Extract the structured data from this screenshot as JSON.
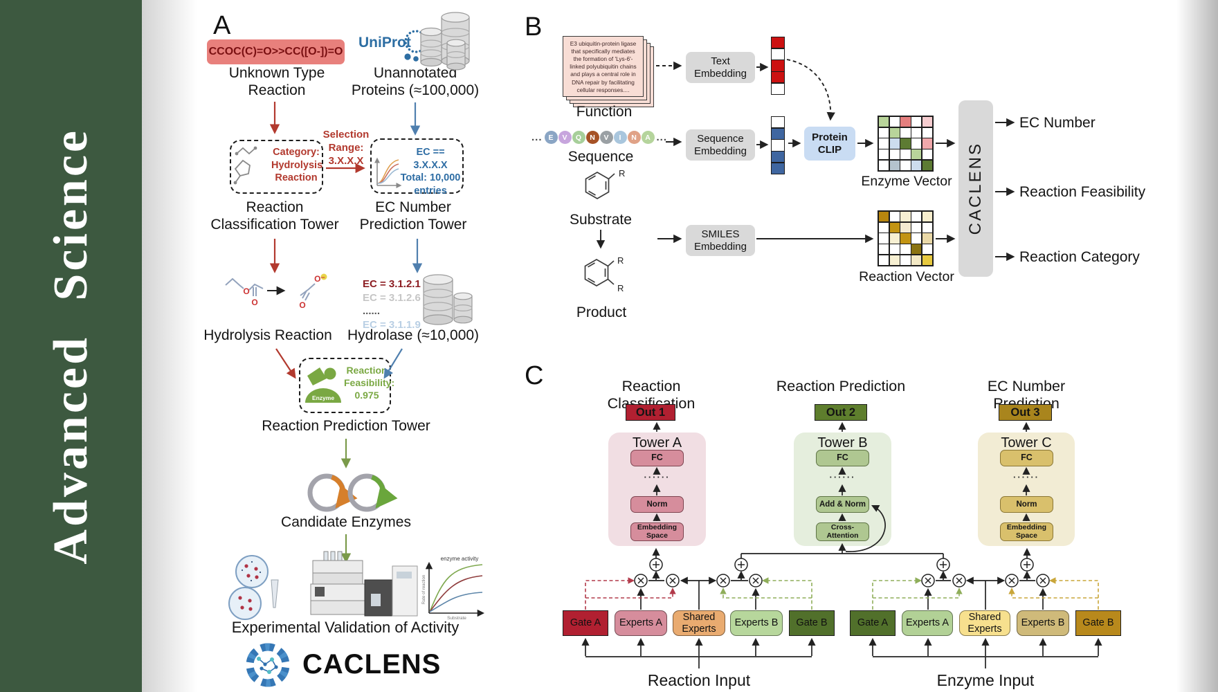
{
  "band": {
    "title": "Advanced Science",
    "bg": "#3d5940"
  },
  "panel_a": {
    "label": "A",
    "smiles": "CCOC(C)=O>>CC([O-])=O",
    "smiles_bg": "#e8807c",
    "smiles_color": "#7a1012",
    "uniprot": "UniProt",
    "unknown_type": "Unknown Type\nReaction",
    "unannotated": "Unannotated\nProteins (≈100,000)",
    "selection_range": "Selection\nRange:\n3.X.X.X",
    "category": "Category:\nHydrolysis\nReaction",
    "ec_filter": "EC == 3.X.X.X\nTotal: 10,000\nentries",
    "ec_filter_color": "#2e6da4",
    "tower1": "Reaction\nClassification Tower",
    "tower2": "EC Number\nPrediction Tower",
    "mol": {
      "o": "O",
      "ominus": "O⁻"
    },
    "ec_list": [
      {
        "text": "EC = 3.1.2.1",
        "color": "#8c1d22"
      },
      {
        "text": "EC = 3.1.2.6",
        "color": "#c6c6c6"
      },
      {
        "text": "......",
        "color": "#555555"
      },
      {
        "text": "EC = 3.1.1.9",
        "color": "#b9cfe4"
      }
    ],
    "hydrolysis": "Hydrolysis Reaction",
    "hydrolase": "Hydrolase (≈10,000)",
    "enzyme_badge": "Enzyme",
    "feasibility": "Reaction\nFeasibility:\n0.975",
    "enzyme_green": "#7aa843",
    "tower3": "Reaction Prediction Tower",
    "candidates": "Candidate Enzymes",
    "graph": {
      "curve_label": "enzyme activity",
      "ylabel": "Rate of reaction",
      "xlabel": "Substrate"
    },
    "validation": "Experimental Validation of Activity",
    "wordmark": "CACLENS",
    "accent_red": "#b2392e",
    "accent_blue": "#4f7fae",
    "accent_green": "#7a9a4a"
  },
  "panel_b": {
    "label": "B",
    "function_text": "E3 ubiquitin-protein ligase that specifically mediates the formation of 'Lys-6'-linked polyubiquitin chains and plays a central role in DNA repair by facilitating cellular responses....",
    "function_label": "Function",
    "ellipsis": "...",
    "residues": [
      {
        "letter": "E",
        "color": "#8aa5c4"
      },
      {
        "letter": "V",
        "color": "#c7a5dd"
      },
      {
        "letter": "Q",
        "color": "#a7cf9a"
      },
      {
        "letter": "N",
        "color": "#a65226"
      },
      {
        "letter": "V",
        "color": "#9aa0a4"
      },
      {
        "letter": "I",
        "color": "#a9c6dd"
      },
      {
        "letter": "N",
        "color": "#e0a287"
      },
      {
        "letter": "A",
        "color": "#b5d49c"
      }
    ],
    "sequence_label": "Sequence",
    "text_embedding": "Text\nEmbedding",
    "sequence_embedding": "Sequence\nEmbedding",
    "smiles_embedding": "SMILES\nEmbedding",
    "protein_clip": "Protein\nCLIP",
    "protein_clip_bg": "#c9dcf3",
    "box_bg": "#d9d9d9",
    "r_label": "R",
    "substrate_label": "Substrate",
    "product_label": "Product",
    "text_vector_cells": [
      "#cc1111",
      "#ffffff",
      "#cc1111",
      "#cc1111",
      "#ffffff"
    ],
    "sequence_vector_cells": [
      "#ffffff",
      "#3f66a0",
      "#ffffff",
      "#3f66a0",
      "#3f66a0"
    ],
    "enzyme_vector": {
      "label": "Enzyme Vector",
      "cells": [
        "#b8d49a",
        "#ffffff",
        "#e57f7f",
        "#ffffff",
        "#f6cdd0",
        "#ffffff",
        "#b8d49a",
        "#ffffff",
        "#ffffff",
        "#ffffff",
        "#ffffff",
        "#ccdcee",
        "#5d7b33",
        "#ffffff",
        "#f0a8ab",
        "#ffffff",
        "#ffffff",
        "#ffffff",
        "#b8d49a",
        "#ffffff",
        "#ffffff",
        "#b4c3cd",
        "#ffffff",
        "#ccdcee",
        "#5d7b33"
      ]
    },
    "reaction_vector": {
      "label": "Reaction Vector",
      "cells": [
        "#b8860f",
        "#ffffff",
        "#f7f0d2",
        "#ffffff",
        "#f7eecd",
        "#ffffff",
        "#c29413",
        "#f3ead0",
        "#ffffff",
        "#ffffff",
        "#ffffff",
        "#f7f0d2",
        "#c29413",
        "#ffffff",
        "#ead9a8",
        "#ffffff",
        "#ffffff",
        "#ffffff",
        "#8a7311",
        "#ffffff",
        "#ffffff",
        "#f7f0d2",
        "#ffffff",
        "#f3e9c5",
        "#e7c93f"
      ]
    },
    "caclens_bar": "CACLENS",
    "caclens_bar_bg": "#d9d9d9",
    "outputs": [
      "EC Number",
      "Reaction Feasibility",
      "Reaction Category"
    ]
  },
  "panel_c": {
    "label": "C",
    "headers": [
      "Reaction Classification",
      "Reaction Prediction",
      "EC Number Prediction"
    ],
    "outs": [
      {
        "label": "Out 1",
        "color": "#b12031"
      },
      {
        "label": "Out 2",
        "color": "#5e7e2d"
      },
      {
        "label": "Out 3",
        "color": "#a9851d"
      }
    ],
    "towers": [
      {
        "name": "Tower A",
        "bg": "#f1dee3",
        "block_bg": "#d68d9c",
        "block_border": "#7d4450",
        "top": "FC",
        "dots": "······",
        "mid": "Norm",
        "bottom": "Embedding\nSpace"
      },
      {
        "name": "Tower B",
        "bg": "#e5eedd",
        "block_bg": "#afc791",
        "block_border": "#5e7345",
        "top": "FC",
        "dots": "······",
        "mid": "Add & Norm",
        "bottom": "Cross-\nAttention"
      },
      {
        "name": "Tower C",
        "bg": "#f2ecd4",
        "block_bg": "#d9c06c",
        "block_border": "#8a7634",
        "top": "FC",
        "dots": "······",
        "mid": "Norm",
        "bottom": "Embedding\nSpace"
      }
    ],
    "moe_left": {
      "gate_a": {
        "label": "Gate A",
        "color": "#b12031"
      },
      "experts_a": {
        "label": "Experts A",
        "color": "#d68d9c"
      },
      "shared": {
        "label": "Shared\nExperts",
        "color": "#e9ab70"
      },
      "experts_b": {
        "label": "Experts B",
        "color": "#b7d79c"
      },
      "gate_b": {
        "label": "Gate B",
        "color": "#51702b"
      },
      "input_label": "Reaction Input"
    },
    "moe_right": {
      "gate_a": {
        "label": "Gate A",
        "color": "#51702b"
      },
      "experts_a": {
        "label": "Experts A",
        "color": "#b2d196"
      },
      "shared": {
        "label": "Shared\nExperts",
        "color": "#f7e08e"
      },
      "experts_b": {
        "label": "Experts B",
        "color": "#cfba7a"
      },
      "gate_b": {
        "label": "Gate B",
        "color": "#b8891c"
      },
      "input_label": "Enzyme Input"
    }
  }
}
